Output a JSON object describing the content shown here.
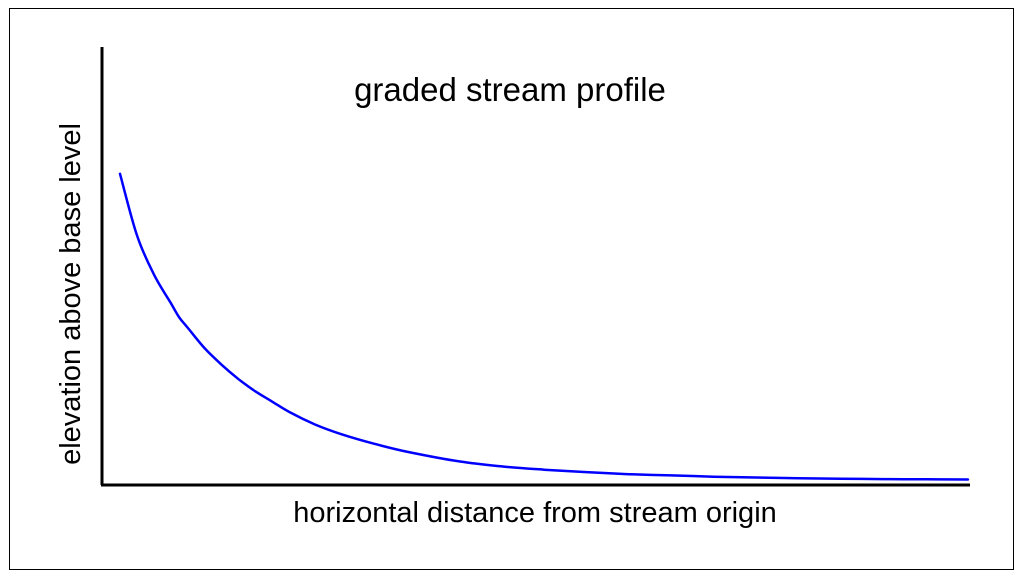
{
  "chart_data": {
    "type": "line",
    "title": "graded stream profile",
    "xlabel": "horizontal distance from stream origin",
    "ylabel": "elevation above base level",
    "xticks": false,
    "yticks": false,
    "grid": false,
    "legend": "none",
    "xlim": [
      0,
      100
    ],
    "ylim": [
      0,
      100
    ],
    "series": [
      {
        "color": "#0000ff",
        "x": [
          0,
          2,
          4,
          6,
          7,
          8,
          10,
          12,
          14,
          16,
          18,
          20,
          23,
          26,
          30,
          34,
          40,
          45,
          50,
          55,
          60,
          65,
          70,
          75,
          80,
          85,
          90,
          95,
          100
        ],
        "y": [
          75,
          60,
          50.5,
          43.5,
          40,
          37.5,
          32.5,
          28.5,
          25,
          22,
          19.5,
          17,
          14,
          11.7,
          9.3,
          7.3,
          5,
          3.8,
          3,
          2.4,
          1.9,
          1.6,
          1.3,
          1.1,
          0.9,
          0.8,
          0.7,
          0.65,
          0.6
        ]
      }
    ]
  },
  "colors": {
    "line": "#0000ff",
    "axes": "#000000",
    "frame": "#000000",
    "background": "#ffffff"
  }
}
